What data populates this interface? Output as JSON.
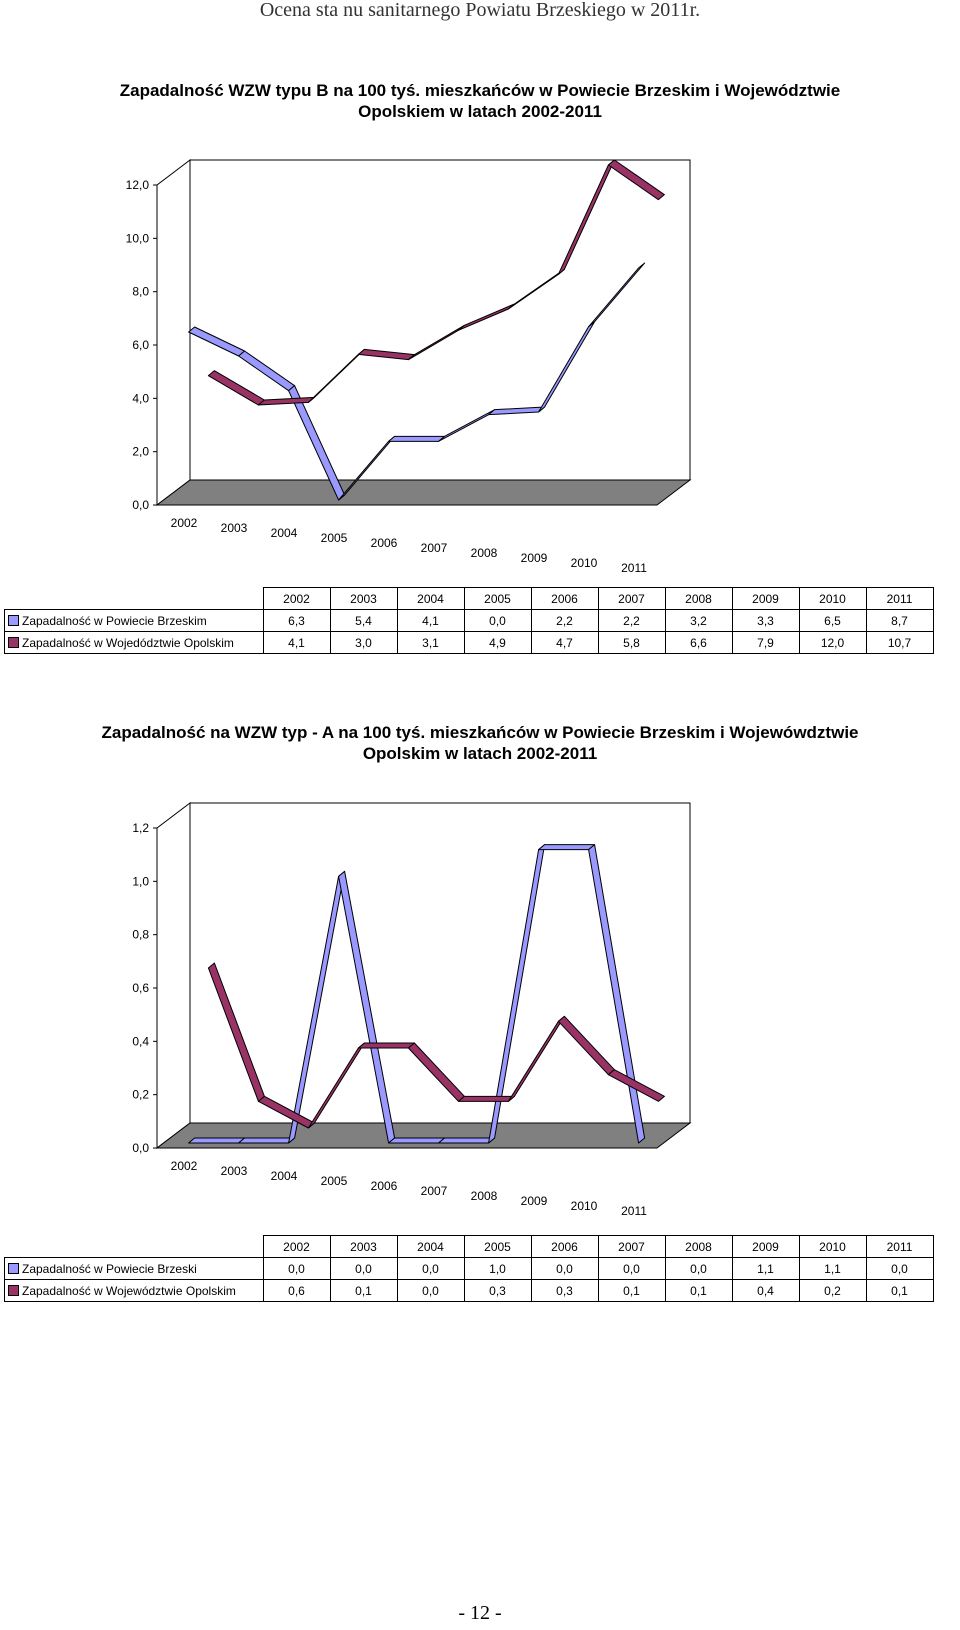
{
  "page": {
    "header": "Ocena sta nu sanitarnego Powiatu Brzeskiego w 2011r.",
    "page_number": "- 12 -"
  },
  "colors": {
    "series_a": "#9999ff",
    "series_b": "#993366",
    "floor": "#808080"
  },
  "chart_data": [
    {
      "type": "line",
      "title_line1": "Zapadalność WZW typu B na 100 tyś. mieszkańców w Powiecie Brzeskim i Województwie",
      "title_line2": "Opolskiem  w latach 2002-2011",
      "categories": [
        "2002",
        "2003",
        "2004",
        "2005",
        "2006",
        "2007",
        "2008",
        "2009",
        "2010",
        "2011"
      ],
      "ylim": [
        0,
        12
      ],
      "yticks": [
        "0,0",
        "2,0",
        "4,0",
        "6,0",
        "8,0",
        "10,0",
        "12,0"
      ],
      "series": [
        {
          "name": "Zapadalność w Powiecie Brzeskim",
          "values": [
            6.3,
            5.4,
            4.1,
            0.0,
            2.2,
            2.2,
            3.2,
            3.3,
            6.5,
            8.7
          ],
          "labels": [
            "6,3",
            "5,4",
            "4,1",
            "0,0",
            "2,2",
            "2,2",
            "3,2",
            "3,3",
            "6,5",
            "8,7"
          ]
        },
        {
          "name": "Zapadalność w Wojedództwie Opolskim",
          "values": [
            4.1,
            3.0,
            3.1,
            4.9,
            4.7,
            5.8,
            6.6,
            7.9,
            12.0,
            10.7
          ],
          "labels": [
            "4,1",
            "3,0",
            "3,1",
            "4,9",
            "4,7",
            "5,8",
            "6,6",
            "7,9",
            "12,0",
            "10,7"
          ]
        }
      ]
    },
    {
      "type": "line",
      "title_line1": "Zapadalność na WZW typ - A na 100 tyś. mieszkańców w Powiecie Brzeskim i Wojewówdztwie",
      "title_line2": "Opolskim w latach 2002-2011",
      "categories": [
        "2002",
        "2003",
        "2004",
        "2005",
        "2006",
        "2007",
        "2008",
        "2009",
        "2010",
        "2011"
      ],
      "ylim": [
        0,
        1.2
      ],
      "yticks": [
        "0,0",
        "0,2",
        "0,4",
        "0,6",
        "0,8",
        "1,0",
        "1,2"
      ],
      "series": [
        {
          "name": "Zapadalność w Powiecie Brzeski",
          "values": [
            0.0,
            0.0,
            0.0,
            1.0,
            0.0,
            0.0,
            0.0,
            1.1,
            1.1,
            0.0
          ],
          "labels": [
            "0,0",
            "0,0",
            "0,0",
            "1,0",
            "0,0",
            "0,0",
            "0,0",
            "1,1",
            "1,1",
            "0,0"
          ]
        },
        {
          "name": "Zapadalność w Województwie Opolskim",
          "values": [
            0.6,
            0.1,
            0.0,
            0.3,
            0.3,
            0.1,
            0.1,
            0.4,
            0.2,
            0.1
          ],
          "labels": [
            "0,6",
            "0,1",
            "0,0",
            "0,3",
            "0,3",
            "0,1",
            "0,1",
            "0,4",
            "0,2",
            "0,1"
          ]
        }
      ]
    }
  ]
}
